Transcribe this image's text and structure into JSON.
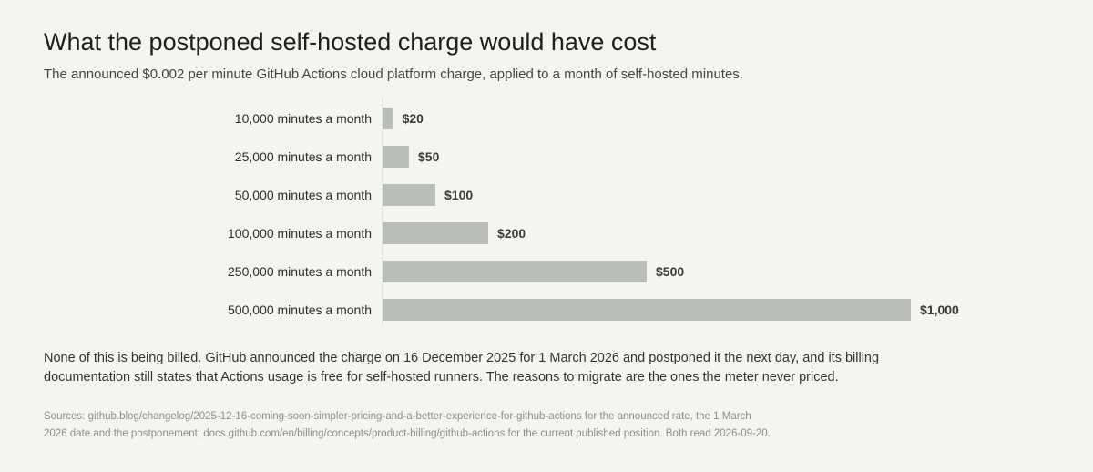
{
  "title": "What the postponed self-hosted charge would have cost",
  "subtitle": "The announced $0.002 per minute GitHub Actions cloud platform charge, applied to a month of self-hosted minutes.",
  "note": "None of this is being billed. GitHub announced the charge on 16 December 2025 for 1 March 2026 and postponed it the next day, and its billing documentation still states that Actions usage is free for self-hosted runners. The reasons to migrate are the ones the meter never priced.",
  "sources": "Sources: github.blog/changelog/2025-12-16-coming-soon-simpler-pricing-and-a-better-experience-for-github-actions for the announced rate, the 1 March 2026 date and the postponement; docs.github.com/en/billing/concepts/product-billing/github-actions for the current published position. Both read 2026-09-20.",
  "colors": {
    "bar": "#b9beb6",
    "axis": "#d6d6d0",
    "label": "#2b2b2b",
    "value_label": "#3a3a3a",
    "background": "#f5f5f0"
  },
  "chart_data": {
    "type": "bar",
    "orientation": "horizontal",
    "categories": [
      "10,000 minutes a month",
      "25,000 minutes a month",
      "50,000 minutes a month",
      "100,000 minutes a month",
      "250,000 minutes a month",
      "500,000 minutes a month"
    ],
    "values": [
      20,
      50,
      100,
      200,
      500,
      1000
    ],
    "value_labels": [
      "$20",
      "$50",
      "$100",
      "$200",
      "$500",
      "$1,000"
    ],
    "xlim": [
      0,
      1000
    ],
    "grid": false,
    "legend": "none"
  }
}
